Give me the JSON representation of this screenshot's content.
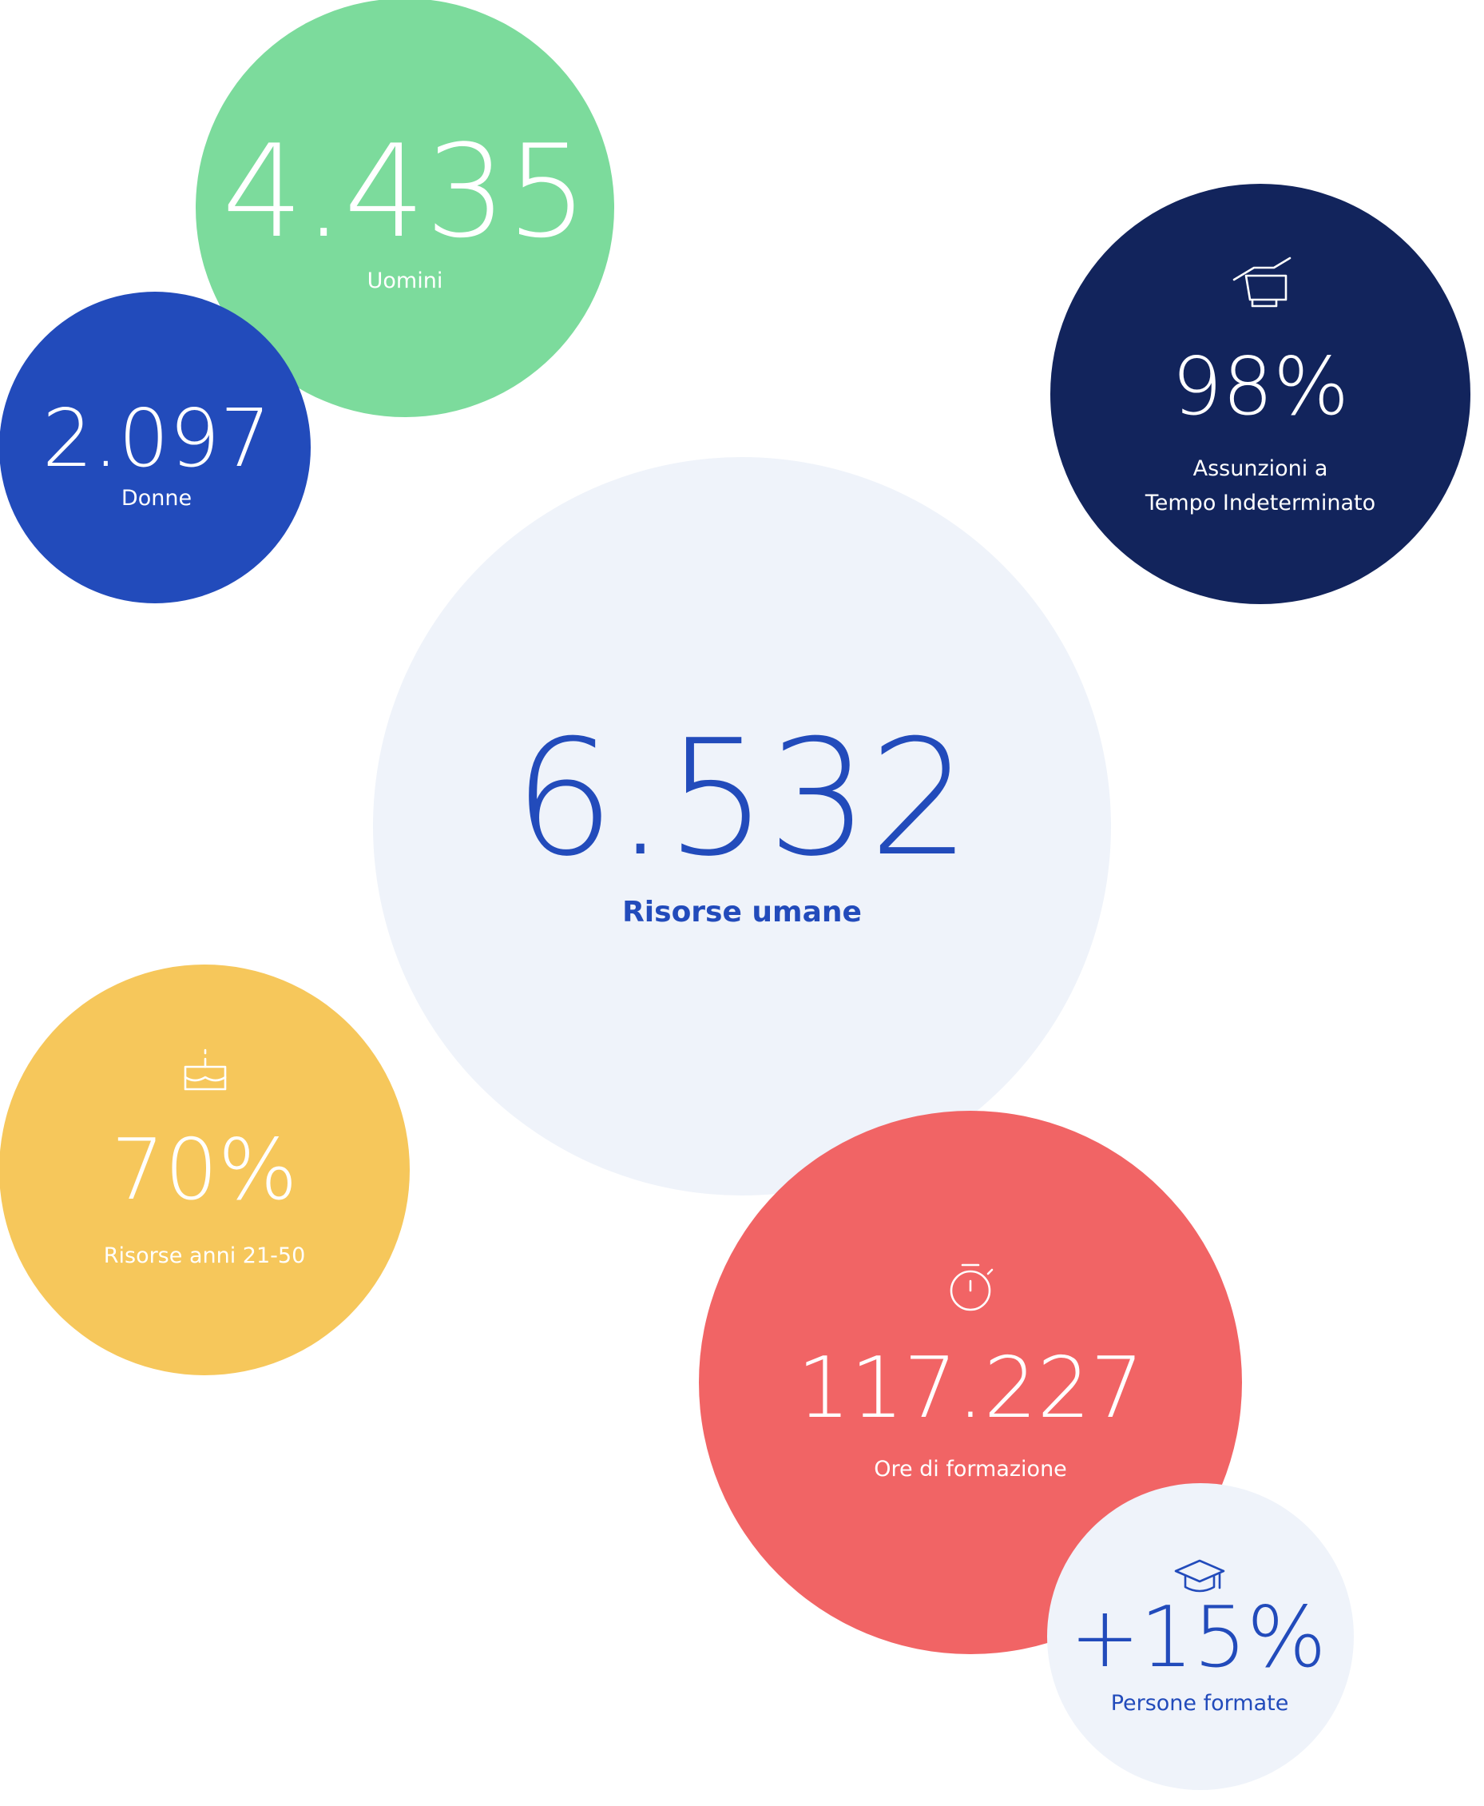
{
  "stats": [
    {
      "value": "4.435",
      "label": [
        "Uomini"
      ]
    },
    {
      "value": "2.097",
      "label": [
        "Donne"
      ]
    },
    {
      "value": "98%",
      "label": [
        "Assunzioni a",
        "Tempo Indeterminato"
      ]
    },
    {
      "value": "6.532",
      "label": [
        "Risorse umane"
      ]
    },
    {
      "value": "70%",
      "label": [
        "Risorse anni 21-50"
      ]
    },
    {
      "value": "117.227",
      "label": [
        "Ore di formazione"
      ]
    },
    {
      "value": "+15%",
      "label": [
        "Persone formate"
      ]
    }
  ]
}
